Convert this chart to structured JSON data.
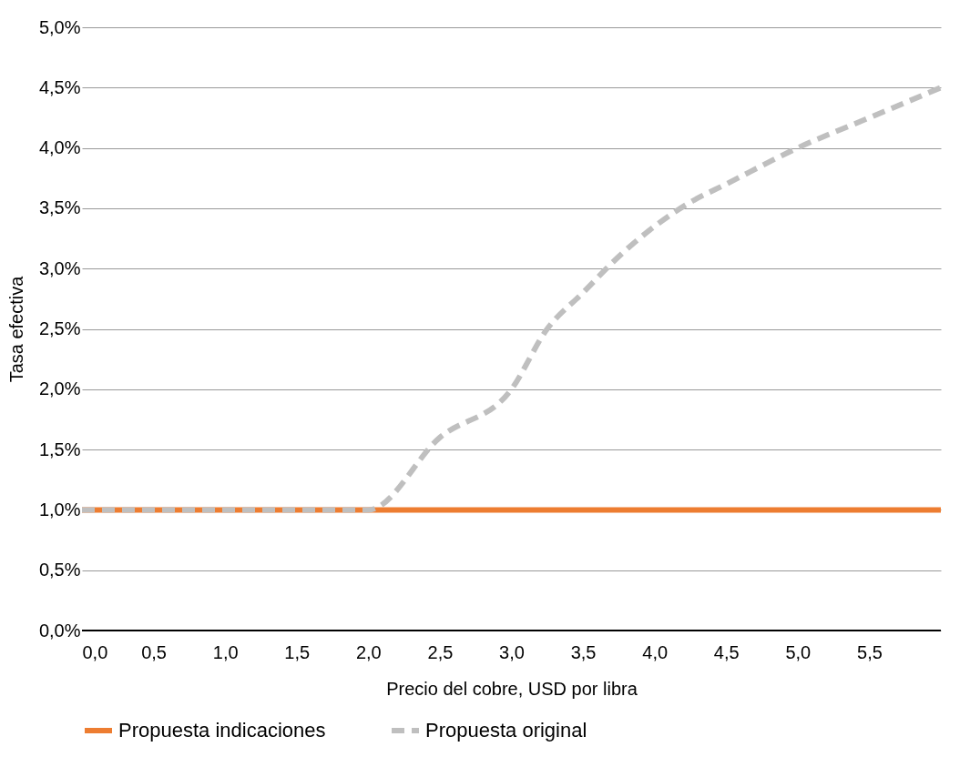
{
  "chart_data": {
    "type": "line",
    "xlabel": "Precio del cobre, USD por  libra",
    "ylabel": "Tasa efectiva",
    "xlim": [
      0,
      6
    ],
    "xticks": [
      {
        "value": 0,
        "label": "0,0"
      },
      {
        "value": 0.5,
        "label": "0,5"
      },
      {
        "value": 1,
        "label": "1,0"
      },
      {
        "value": 1.5,
        "label": "1,5"
      },
      {
        "value": 2,
        "label": "2,0"
      },
      {
        "value": 2.5,
        "label": "2,5"
      },
      {
        "value": 3,
        "label": "3,0"
      },
      {
        "value": 3.5,
        "label": "3,5"
      },
      {
        "value": 4,
        "label": "4,0"
      },
      {
        "value": 4.5,
        "label": "4,5"
      },
      {
        "value": 5,
        "label": "5,0"
      },
      {
        "value": 5.5,
        "label": "5,5"
      }
    ],
    "ylim": [
      0,
      5
    ],
    "yticks": [
      {
        "value": 0,
        "label": "0,0%"
      },
      {
        "value": 0.5,
        "label": "0,5%"
      },
      {
        "value": 1,
        "label": "1,0%"
      },
      {
        "value": 1.5,
        "label": "1,5%"
      },
      {
        "value": 2,
        "label": "2,0%"
      },
      {
        "value": 2.5,
        "label": "2,5%"
      },
      {
        "value": 3,
        "label": "3,0%"
      },
      {
        "value": 3.5,
        "label": "3,5%"
      },
      {
        "value": 4,
        "label": "4,0%"
      },
      {
        "value": 4.5,
        "label": "4,5%"
      },
      {
        "value": 5,
        "label": "5,0%"
      }
    ],
    "grid": "y",
    "legend": "bottom",
    "marker": "none",
    "series": [
      {
        "name": "Propuesta indicaciones",
        "color": "#ed7d31",
        "line_style": "solid",
        "x": [
          0,
          6
        ],
        "values": [
          1,
          1
        ]
      },
      {
        "name": "Propuesta original",
        "color": "#bfbfbf",
        "line_style": "dashed",
        "x": [
          0,
          2,
          2.5,
          3,
          3.25,
          3.5,
          3.75,
          4,
          4.25,
          4.5,
          5,
          5.5,
          6
        ],
        "values": [
          1,
          1,
          1.6,
          2,
          2.5,
          2.8,
          3.1,
          3.35,
          3.55,
          3.7,
          4,
          4.25,
          4.5
        ]
      }
    ]
  }
}
